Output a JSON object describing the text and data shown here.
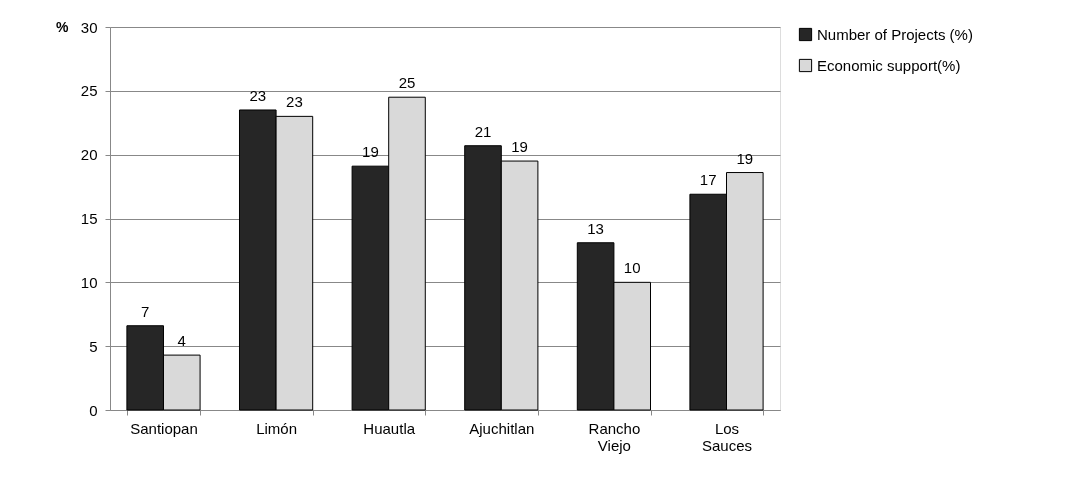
{
  "chart_data": {
    "type": "bar",
    "ylabel": "%",
    "categories": [
      "Santiopan",
      "Limón",
      "Huautla",
      "Ajuchitlan",
      "Rancho Viejo",
      "Los Sauces"
    ],
    "series": [
      {
        "name": "Number of Projects (%)",
        "color": "#262626",
        "values": [
          6.6,
          23.5,
          19.1,
          20.7,
          13.1,
          16.9
        ],
        "value_labels": [
          "7",
          "23",
          "19",
          "21",
          "13",
          "17"
        ]
      },
      {
        "name": "Economic support(%)",
        "color": "#d9d9d9",
        "values": [
          4.3,
          23.0,
          24.5,
          19.5,
          10.0,
          18.6
        ],
        "value_labels": [
          "4",
          "23",
          "25",
          "19",
          "10",
          "19"
        ]
      }
    ],
    "ylim": [
      0,
      30
    ],
    "yticks": [
      0,
      5,
      10,
      15,
      20,
      25,
      30
    ],
    "grid": "y",
    "legend": "right"
  }
}
